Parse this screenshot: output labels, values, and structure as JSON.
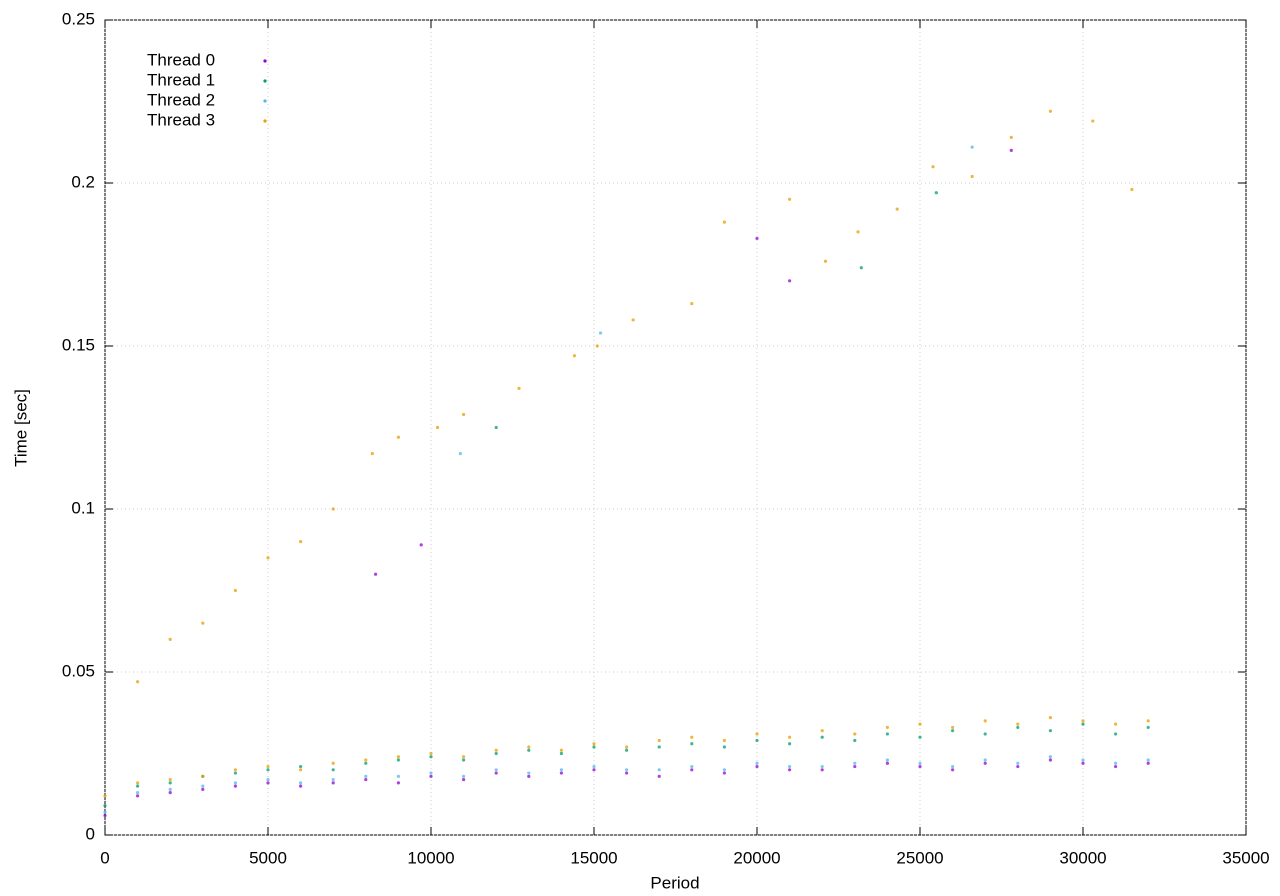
{
  "chart_data": {
    "type": "scatter",
    "xlabel": "Period",
    "ylabel": "Time [sec]",
    "xlim": [
      0,
      35000
    ],
    "ylim": [
      0,
      0.25
    ],
    "xticks": [
      0,
      5000,
      10000,
      15000,
      20000,
      25000,
      30000,
      35000
    ],
    "yticks": [
      0,
      0.05,
      0.1,
      0.15,
      0.2,
      0.25
    ],
    "grid": true,
    "legend": "top-left",
    "series": [
      {
        "name": "Thread 0",
        "color": "#9400d3",
        "x": [
          0,
          1000,
          2000,
          3000,
          4000,
          5000,
          6000,
          7000,
          8000,
          9000,
          10000,
          11000,
          12000,
          13000,
          14000,
          15000,
          16000,
          17000,
          18000,
          19000,
          20000,
          21000,
          22000,
          23000,
          24000,
          25000,
          26000,
          27000,
          28000,
          29000,
          30000,
          31000,
          32000,
          8300,
          9700,
          20000,
          21000,
          27800
        ],
        "values": [
          0.006,
          0.012,
          0.013,
          0.014,
          0.015,
          0.016,
          0.015,
          0.016,
          0.017,
          0.016,
          0.018,
          0.017,
          0.019,
          0.018,
          0.019,
          0.02,
          0.019,
          0.018,
          0.02,
          0.019,
          0.021,
          0.02,
          0.02,
          0.021,
          0.022,
          0.021,
          0.02,
          0.022,
          0.021,
          0.023,
          0.022,
          0.021,
          0.022,
          0.08,
          0.089,
          0.183,
          0.17,
          0.21
        ]
      },
      {
        "name": "Thread 1",
        "color": "#009e73",
        "x": [
          0,
          1000,
          2000,
          3000,
          4000,
          5000,
          6000,
          7000,
          8000,
          9000,
          10000,
          11000,
          12000,
          13000,
          14000,
          15000,
          16000,
          17000,
          18000,
          19000,
          20000,
          21000,
          22000,
          23000,
          24000,
          25000,
          26000,
          27000,
          28000,
          29000,
          30000,
          31000,
          32000,
          12000,
          23200,
          25500
        ],
        "values": [
          0.009,
          0.015,
          0.016,
          0.018,
          0.019,
          0.02,
          0.021,
          0.02,
          0.022,
          0.023,
          0.024,
          0.023,
          0.025,
          0.026,
          0.025,
          0.027,
          0.026,
          0.027,
          0.028,
          0.027,
          0.029,
          0.028,
          0.03,
          0.029,
          0.031,
          0.03,
          0.032,
          0.031,
          0.033,
          0.032,
          0.034,
          0.031,
          0.033,
          0.125,
          0.174,
          0.197
        ]
      },
      {
        "name": "Thread 2",
        "color": "#56b4e9",
        "x": [
          0,
          1000,
          2000,
          3000,
          4000,
          5000,
          6000,
          7000,
          8000,
          9000,
          10000,
          11000,
          12000,
          13000,
          14000,
          15000,
          16000,
          17000,
          18000,
          19000,
          20000,
          21000,
          22000,
          23000,
          24000,
          25000,
          26000,
          27000,
          28000,
          29000,
          30000,
          31000,
          32000,
          10900,
          15200,
          26600
        ],
        "values": [
          0.007,
          0.013,
          0.014,
          0.015,
          0.016,
          0.017,
          0.016,
          0.017,
          0.018,
          0.018,
          0.019,
          0.018,
          0.02,
          0.019,
          0.02,
          0.021,
          0.02,
          0.02,
          0.021,
          0.02,
          0.022,
          0.021,
          0.021,
          0.022,
          0.023,
          0.022,
          0.021,
          0.023,
          0.022,
          0.024,
          0.023,
          0.022,
          0.023,
          0.117,
          0.154,
          0.211
        ]
      },
      {
        "name": "Thread 3",
        "color": "#e69f00",
        "x": [
          0,
          1000,
          2000,
          3000,
          4000,
          5000,
          6000,
          7000,
          8000,
          9000,
          10000,
          11000,
          12000,
          13000,
          14000,
          15000,
          16000,
          17000,
          18000,
          19000,
          20000,
          21000,
          22000,
          23000,
          24000,
          25000,
          26000,
          27000,
          28000,
          29000,
          30000,
          31000,
          32000,
          1000,
          2000,
          3000,
          4000,
          5000,
          6000,
          7000,
          8200,
          9000,
          10200,
          11000,
          12700,
          14400,
          15100,
          16200,
          18000,
          19000,
          21000,
          22100,
          23100,
          24300,
          25400,
          26600,
          27800,
          29000,
          30300,
          31500
        ],
        "values": [
          0.012,
          0.016,
          0.017,
          0.018,
          0.02,
          0.021,
          0.02,
          0.022,
          0.023,
          0.024,
          0.025,
          0.024,
          0.026,
          0.027,
          0.026,
          0.028,
          0.027,
          0.029,
          0.03,
          0.029,
          0.031,
          0.03,
          0.032,
          0.031,
          0.033,
          0.034,
          0.033,
          0.035,
          0.034,
          0.036,
          0.035,
          0.034,
          0.035,
          0.047,
          0.06,
          0.065,
          0.075,
          0.085,
          0.09,
          0.1,
          0.117,
          0.122,
          0.125,
          0.129,
          0.137,
          0.147,
          0.15,
          0.158,
          0.163,
          0.188,
          0.195,
          0.176,
          0.185,
          0.192,
          0.205,
          0.202,
          0.214,
          0.222,
          0.219,
          0.198
        ]
      }
    ]
  }
}
